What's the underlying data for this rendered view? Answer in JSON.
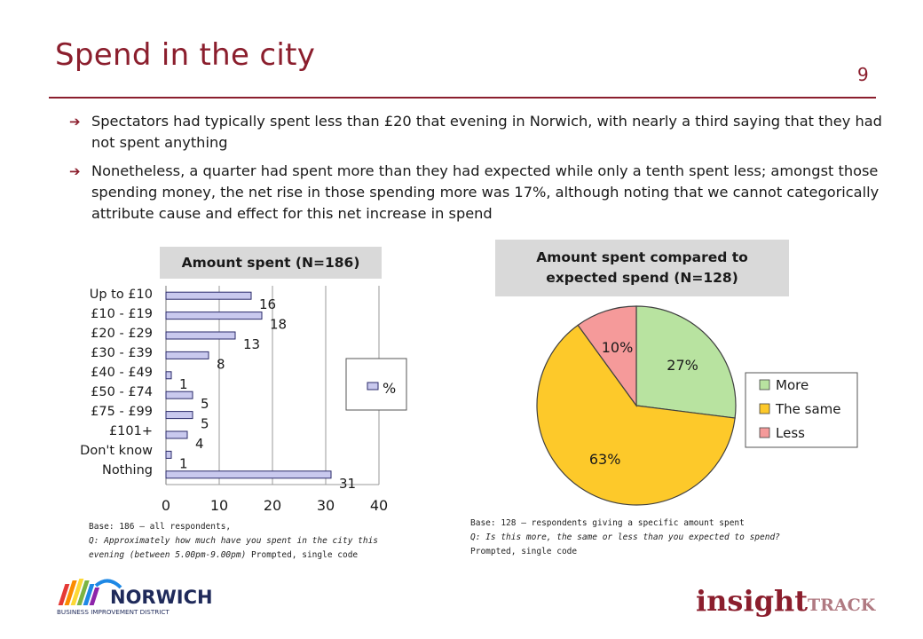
{
  "slide": {
    "title": "Spend in the city",
    "page_number": "9",
    "bullets": [
      "Spectators had typically spent less than £20 that evening in Norwich, with nearly a third saying that they had not spent anything",
      "Nonetheless, a quarter had spent more than they had expected while only a tenth spent less; amongst those spending money, the net rise in those spending more was 17%, although noting that we cannot categorically attribute cause and effect for this net increase in spend"
    ]
  },
  "colors": {
    "brand": "#8b1e2d",
    "bar_fill": "#c9c9ee",
    "bar_stroke": "#2a2a6a",
    "pie_more": "#b8e3a0",
    "pie_same": "#fdc92a",
    "pie_less": "#f59a9a"
  },
  "chart_data": [
    {
      "type": "bar",
      "orientation": "horizontal",
      "title": "Amount spent (N=186)",
      "categories": [
        "Up to £10",
        "£10 - £19",
        "£20 - £29",
        "£30 - £39",
        "£40 - £49",
        "£50 - £74",
        "£75 - £99",
        "£101+",
        "Don't know",
        "Nothing"
      ],
      "series": [
        {
          "name": "%",
          "values": [
            16,
            18,
            13,
            8,
            1,
            5,
            5,
            4,
            1,
            31
          ]
        }
      ],
      "xlim": [
        0,
        40
      ],
      "xticks": [
        "0",
        "10",
        "20",
        "30",
        "40"
      ],
      "grid": true,
      "legend": "right",
      "footnote": {
        "base": "Base: 186 – all respondents,",
        "question": "Q: Approximately how much have you spent in the city this evening (between 5.00pm-9.00pm)",
        "prompt": " Prompted, single code"
      }
    },
    {
      "type": "pie",
      "title_line1": "Amount spent compared to",
      "title_line2": "expected spend (N=128)",
      "labels": [
        "More",
        "The same",
        "Less"
      ],
      "values": [
        27,
        63,
        10
      ],
      "value_labels": [
        "27%",
        "63%",
        "10%"
      ],
      "legend": "right",
      "footnote": {
        "base": "Base: 128 – respondents giving a specific amount spent",
        "question": "Q: Is this more, the same or less than you expected to spend?",
        "prompt": "Prompted, single code"
      }
    }
  ],
  "logos": {
    "left_name": "NORWICH",
    "left_sub": "BUSINESS IMPROVEMENT DISTRICT",
    "right_main": "insight",
    "right_sub": "TRACK"
  }
}
